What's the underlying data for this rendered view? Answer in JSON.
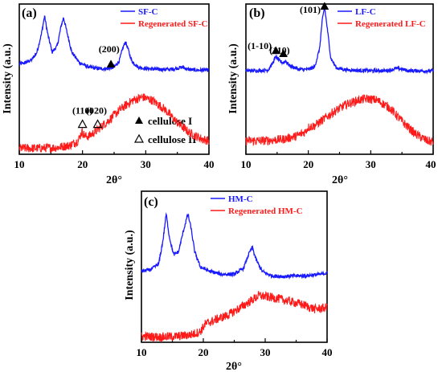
{
  "colors": {
    "original": "#1a1aff",
    "regenerated": "#ff1a1a",
    "axis": "#000000"
  },
  "chart_data": [
    {
      "type": "line",
      "panel": "(a)",
      "xlabel": "2θ°",
      "ylabel": "Intensity (a.u.)",
      "xlim": [
        10,
        40
      ],
      "xticks": [
        "10",
        "20",
        "30",
        "40"
      ],
      "legend_placement": "top-right",
      "series": [
        {
          "name": "SF-C",
          "color": "#1a1aff",
          "x": [
            10,
            11,
            12,
            12.8,
            13.5,
            14.0,
            14.5,
            15.2,
            16.0,
            16.6,
            17.0,
            17.5,
            18.3,
            19.5,
            21,
            22.5,
            24,
            25,
            25.8,
            26.4,
            26.8,
            27.2,
            27.8,
            28.8,
            30,
            32,
            34,
            35.2,
            35.8,
            36.6,
            38,
            40
          ],
          "y": [
            0.6,
            0.61,
            0.63,
            0.68,
            0.8,
            0.92,
            0.8,
            0.68,
            0.72,
            0.85,
            0.91,
            0.82,
            0.68,
            0.61,
            0.58,
            0.57,
            0.57,
            0.58,
            0.62,
            0.71,
            0.75,
            0.7,
            0.62,
            0.58,
            0.57,
            0.565,
            0.565,
            0.575,
            0.58,
            0.565,
            0.56,
            0.56
          ]
        },
        {
          "name": "Regenerated SF-C",
          "color": "#ff1a1a",
          "x": [
            10,
            13,
            16,
            18,
            19.3,
            19.9,
            20.4,
            21,
            22,
            24,
            26,
            28,
            29.5,
            31,
            33,
            35,
            37,
            39,
            40
          ],
          "y": [
            0.04,
            0.04,
            0.045,
            0.06,
            0.09,
            0.15,
            0.12,
            0.12,
            0.15,
            0.22,
            0.3,
            0.36,
            0.38,
            0.36,
            0.3,
            0.21,
            0.14,
            0.1,
            0.09
          ]
        }
      ],
      "annotations": [
        {
          "text": "(200)",
          "x": 24.2,
          "y": 0.68
        },
        {
          "text": "(110)",
          "x": 20.0,
          "y": 0.27
        },
        {
          "text": "(020)",
          "x": 22.2,
          "y": 0.27
        }
      ],
      "markers": [
        {
          "shape": "filled-triangle",
          "x": 24.5,
          "y": 0.6
        },
        {
          "shape": "open-triangle",
          "x": 20.0,
          "y": 0.2
        },
        {
          "shape": "open-triangle",
          "x": 22.4,
          "y": 0.2
        }
      ],
      "key": [
        {
          "marker": "filled-triangle",
          "label": "cellulose I"
        },
        {
          "marker": "open-triangle",
          "label": "cellulose II"
        }
      ]
    },
    {
      "type": "line",
      "panel": "(b)",
      "xlabel": "2θ°",
      "ylabel": "Intensity (a.u.)",
      "xlim": [
        10,
        40
      ],
      "xticks": [
        "10",
        "20",
        "30",
        "40"
      ],
      "legend_placement": "top-right",
      "series": [
        {
          "name": "LF-C",
          "color": "#1a1aff",
          "x": [
            10,
            12,
            13.5,
            14.2,
            14.8,
            15.4,
            15.9,
            16.4,
            17.0,
            18.5,
            20,
            21,
            21.8,
            22.2,
            22.6,
            23.0,
            23.6,
            24.5,
            26,
            28,
            30,
            32,
            33.2,
            34.0,
            34.8,
            36,
            38,
            40
          ],
          "y": [
            0.555,
            0.557,
            0.56,
            0.6,
            0.65,
            0.62,
            0.61,
            0.62,
            0.59,
            0.565,
            0.565,
            0.58,
            0.7,
            0.88,
            0.98,
            0.85,
            0.64,
            0.575,
            0.562,
            0.558,
            0.556,
            0.556,
            0.56,
            0.572,
            0.568,
            0.556,
            0.555,
            0.555
          ]
        },
        {
          "name": "Regenerated LF-C",
          "color": "#ff1a1a",
          "x": [
            10,
            13,
            16,
            18,
            19.5,
            20,
            21,
            22,
            24,
            26,
            28,
            29.5,
            31,
            33,
            35,
            37,
            39,
            40
          ],
          "y": [
            0.09,
            0.09,
            0.1,
            0.12,
            0.15,
            0.18,
            0.19,
            0.22,
            0.28,
            0.33,
            0.36,
            0.37,
            0.36,
            0.31,
            0.22,
            0.14,
            0.09,
            0.08
          ]
        }
      ],
      "annotations": [
        {
          "text": "(101)",
          "x": 20.3,
          "y": 0.94
        },
        {
          "text": "(1-10)",
          "x": 12.2,
          "y": 0.7
        },
        {
          "text": "(110)",
          "x": 15.4,
          "y": 0.67
        }
      ],
      "markers": [
        {
          "shape": "filled-triangle",
          "x": 22.6,
          "y": 0.985
        },
        {
          "shape": "filled-triangle",
          "x": 14.8,
          "y": 0.69
        },
        {
          "shape": "filled-triangle",
          "x": 16.0,
          "y": 0.67
        }
      ]
    },
    {
      "type": "line",
      "panel": "(c)",
      "xlabel": "2θ°",
      "ylabel": "Intensity (a.u.)",
      "xlim": [
        10,
        40
      ],
      "xticks": [
        "10",
        "20",
        "30",
        "40"
      ],
      "legend_placement": "top-right",
      "series": [
        {
          "name": "HM-C",
          "color": "#1a1aff",
          "x": [
            10,
            11.5,
            12.8,
            13.5,
            14.0,
            14.5,
            15.2,
            16.0,
            16.8,
            17.5,
            18.0,
            18.6,
            19.5,
            21,
            23,
            25,
            26.5,
            27.3,
            27.9,
            28.5,
            29.5,
            31,
            33,
            35,
            36.5,
            37.5,
            39,
            40
          ],
          "y": [
            0.47,
            0.48,
            0.52,
            0.68,
            0.85,
            0.7,
            0.58,
            0.6,
            0.74,
            0.85,
            0.76,
            0.6,
            0.5,
            0.47,
            0.45,
            0.45,
            0.49,
            0.58,
            0.63,
            0.55,
            0.47,
            0.44,
            0.435,
            0.44,
            0.44,
            0.445,
            0.45,
            0.46
          ]
        },
        {
          "name": "Regenerated HM-C",
          "color": "#ff1a1a",
          "x": [
            10,
            13,
            16,
            18,
            19.5,
            20.3,
            22,
            24,
            26,
            27.5,
            29,
            30.5,
            32,
            34,
            36,
            38,
            40
          ],
          "y": [
            0.04,
            0.035,
            0.04,
            0.05,
            0.07,
            0.12,
            0.15,
            0.18,
            0.23,
            0.27,
            0.31,
            0.3,
            0.29,
            0.27,
            0.25,
            0.22,
            0.23
          ]
        }
      ]
    }
  ]
}
